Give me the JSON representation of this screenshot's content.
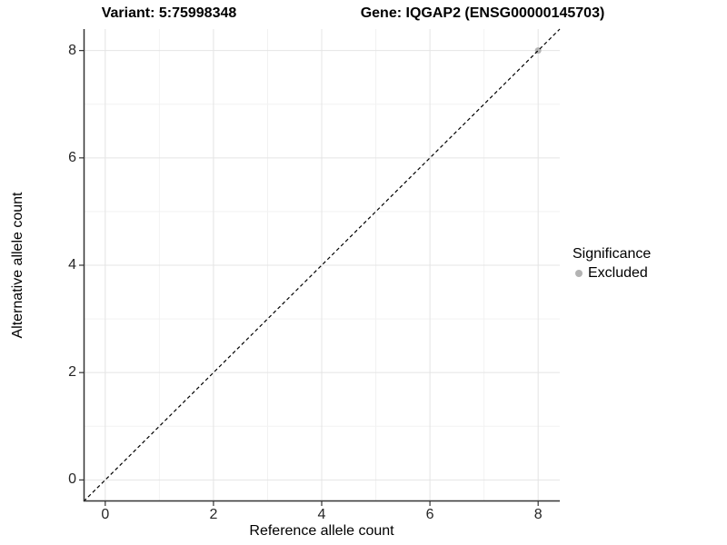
{
  "titles": {
    "variant": "Variant: 5:75998348",
    "gene": "Gene: IQGAP2 (ENSG00000145703)"
  },
  "chart_data": {
    "type": "scatter",
    "title_left": "Variant: 5:75998348",
    "title_right": "Gene: IQGAP2 (ENSG00000145703)",
    "xlabel": "Reference allele count",
    "ylabel": "Alternative allele count",
    "xlim": [
      -0.4,
      8.4
    ],
    "ylim": [
      -0.4,
      8.4
    ],
    "xticks": [
      0,
      2,
      4,
      6,
      8
    ],
    "yticks": [
      0,
      2,
      4,
      6,
      8
    ],
    "x_minor_ticks": [
      1,
      3,
      5,
      7
    ],
    "y_minor_ticks": [
      1,
      3,
      5,
      7
    ],
    "grid": true,
    "identity_line": {
      "style": "dashed",
      "from": [
        -0.4,
        -0.4
      ],
      "to": [
        8.4,
        8.4
      ],
      "color": "#000000",
      "dash": [
        4,
        3
      ],
      "width": 1.2
    },
    "series": [
      {
        "name": "Excluded",
        "color": "#b3b3b3",
        "point_radius": 3.5,
        "points": [
          [
            8,
            8
          ]
        ]
      }
    ],
    "legend": {
      "title": "Significance",
      "position": "right",
      "items": [
        {
          "label": "Excluded",
          "color": "#b3b3b3"
        }
      ]
    },
    "colors": {
      "grid_major": "#e4e4e4",
      "grid_minor": "#f2f2f2",
      "axis_line": "#333333",
      "tick_mark": "#333333",
      "tick_text": "#262626",
      "background": "#ffffff"
    }
  }
}
